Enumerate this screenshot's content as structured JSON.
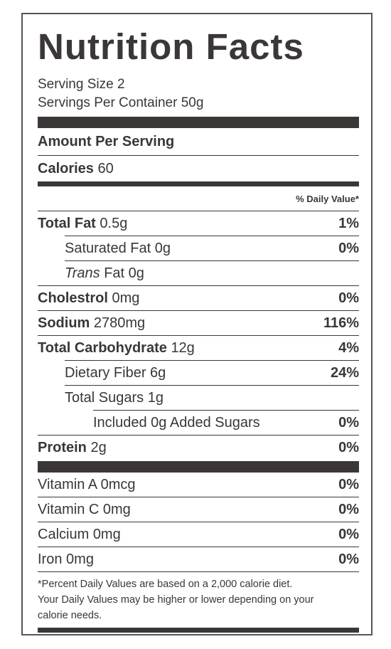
{
  "title": "Nutrition Facts",
  "serving_size": "Serving Size 2",
  "servings_per_container": "Servings Per Container 50g",
  "amount_per_serving": "Amount Per Serving",
  "calories": {
    "label": "Calories",
    "value": "60"
  },
  "daily_value_header": "% Daily Value*",
  "nutrients": [
    {
      "name": "Total Fat",
      "amount": "0.5g",
      "dv": "1%",
      "bold": true,
      "indent": 0
    },
    {
      "name": "Saturated Fat",
      "amount": "0g",
      "dv": "0%",
      "bold": false,
      "indent": 1
    },
    {
      "name_italic": "Trans",
      "name": "Fat",
      "amount": "0g",
      "bold": false,
      "indent": 1
    },
    {
      "name": "Cholestrol",
      "amount": "0mg",
      "dv": "0%",
      "bold": true,
      "indent": 0
    },
    {
      "name": "Sodium",
      "amount": "2780mg",
      "dv": "116%",
      "bold": true,
      "indent": 0
    },
    {
      "name": "Total Carbohydrate",
      "amount": "12g",
      "dv": "4%",
      "bold": true,
      "indent": 0
    },
    {
      "name": "Dietary Fiber",
      "amount": "6g",
      "dv": "24%",
      "bold": false,
      "indent": 1
    },
    {
      "name": "Total Sugars",
      "amount": "1g",
      "bold": false,
      "indent": 1
    },
    {
      "name": "Included 0g Added Sugars",
      "dv": "0%",
      "bold": false,
      "indent": 2
    },
    {
      "name": "Protein",
      "amount": "2g",
      "dv": "0%",
      "bold": true,
      "indent": 0
    }
  ],
  "vitamins": [
    {
      "name": "Vitamin A",
      "amount": "0mcg",
      "dv": "0%"
    },
    {
      "name": "Vitamin C",
      "amount": "0mg",
      "dv": "0%"
    },
    {
      "name": "Calcium",
      "amount": "0mg",
      "dv": "0%"
    },
    {
      "name": "Iron",
      "amount": "0mg",
      "dv": "0%"
    }
  ],
  "footnote": [
    "*Percent Daily Values are based on a 2,000 calorie diet.",
    "Your Daily Values may be higher or lower depending on your",
    "calorie needs."
  ]
}
